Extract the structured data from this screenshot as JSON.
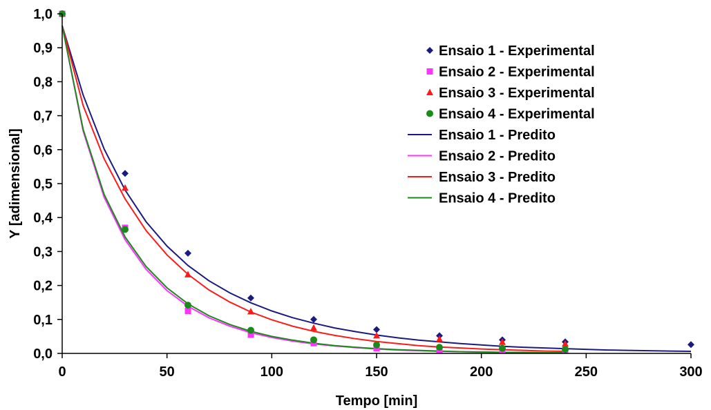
{
  "chart_data": {
    "type": "scatter",
    "title": "",
    "xlabel": "Tempo [min]",
    "ylabel": "Y [adimensional]",
    "xlim": [
      0,
      300
    ],
    "ylim": [
      0,
      1.0
    ],
    "xticks": [
      "0",
      "50",
      "100",
      "150",
      "200",
      "250",
      "300"
    ],
    "yticks": [
      "0,0",
      "0,1",
      "0,2",
      "0,3",
      "0,4",
      "0,5",
      "0,6",
      "0,7",
      "0,8",
      "0,9",
      "1,0"
    ],
    "grid": false,
    "legend_position": "top-right",
    "series": [
      {
        "name": "Ensaio 1 - Experimental",
        "kind": "scatter",
        "marker": "diamond",
        "color": "#1a1a80",
        "x": [
          0,
          30,
          60,
          90,
          120,
          150,
          180,
          210,
          240,
          300
        ],
        "y": [
          1.0,
          0.53,
          0.295,
          0.163,
          0.1,
          0.07,
          0.052,
          0.04,
          0.034,
          0.026
        ]
      },
      {
        "name": "Ensaio 2 - Experimental",
        "kind": "scatter",
        "marker": "square",
        "color": "#ff33ff",
        "x": [
          0,
          30,
          60,
          90,
          120,
          150,
          180,
          210,
          240
        ],
        "y": [
          1.0,
          0.37,
          0.125,
          0.055,
          0.03,
          0.015,
          0.01,
          0.01,
          0.008
        ]
      },
      {
        "name": "Ensaio 3 - Experimental",
        "kind": "scatter",
        "marker": "triangle",
        "color": "#ff1a1a",
        "x": [
          0,
          30,
          60,
          90,
          120,
          150,
          180,
          210,
          240
        ],
        "y": [
          1.0,
          0.487,
          0.232,
          0.123,
          0.075,
          0.052,
          0.042,
          0.033,
          0.028
        ]
      },
      {
        "name": "Ensaio 4 - Experimental",
        "kind": "scatter",
        "marker": "circle",
        "color": "#1a8a1a",
        "x": [
          0,
          30,
          60,
          90,
          120,
          150,
          180,
          210,
          240
        ],
        "y": [
          1.0,
          0.365,
          0.142,
          0.068,
          0.04,
          0.025,
          0.018,
          0.015,
          0.012
        ]
      },
      {
        "name": "Ensaio 1 - Predito",
        "kind": "line",
        "color": "#1a1a80",
        "x": [
          0,
          10,
          20,
          30,
          40,
          50,
          60,
          70,
          80,
          90,
          100,
          110,
          120,
          130,
          140,
          150,
          160,
          170,
          180,
          190,
          200,
          210,
          220,
          230,
          240,
          250,
          260,
          270,
          280,
          290,
          300
        ],
        "y": [
          0.965,
          0.761,
          0.602,
          0.481,
          0.388,
          0.316,
          0.259,
          0.214,
          0.178,
          0.149,
          0.125,
          0.105,
          0.089,
          0.075,
          0.064,
          0.054,
          0.046,
          0.039,
          0.034,
          0.029,
          0.025,
          0.021,
          0.018,
          0.016,
          0.014,
          0.012,
          0.01,
          0.009,
          0.008,
          0.007,
          0.006
        ]
      },
      {
        "name": "Ensaio 2 - Predito",
        "kind": "line",
        "color": "#ff33ff",
        "x": [
          0,
          10,
          20,
          30,
          40,
          50,
          60,
          70,
          80,
          90,
          100,
          110,
          120,
          130,
          140,
          150,
          160,
          170,
          180,
          190,
          200,
          210,
          220,
          230,
          240
        ],
        "y": [
          0.965,
          0.655,
          0.46,
          0.335,
          0.248,
          0.185,
          0.139,
          0.105,
          0.08,
          0.061,
          0.047,
          0.036,
          0.028,
          0.022,
          0.017,
          0.013,
          0.01,
          0.008,
          0.006,
          0.005,
          0.004,
          0.003,
          0.003,
          0.002,
          0.002
        ]
      },
      {
        "name": "Ensaio 3 - Predito",
        "kind": "line",
        "color": "#ff1a1a",
        "x": [
          0,
          10,
          20,
          30,
          40,
          50,
          60,
          70,
          80,
          90,
          100,
          110,
          120,
          130,
          140,
          150,
          160,
          170,
          180,
          190,
          200,
          210,
          220,
          230,
          240
        ],
        "y": [
          0.965,
          0.73,
          0.573,
          0.455,
          0.362,
          0.29,
          0.233,
          0.187,
          0.151,
          0.122,
          0.099,
          0.08,
          0.065,
          0.053,
          0.043,
          0.035,
          0.029,
          0.023,
          0.019,
          0.016,
          0.013,
          0.011,
          0.009,
          0.007,
          0.006
        ]
      },
      {
        "name": "Ensaio 4 - Predito",
        "kind": "line",
        "color": "#1a8a1a",
        "x": [
          0,
          10,
          20,
          30,
          40,
          50,
          60,
          70,
          80,
          90,
          100,
          110,
          120,
          130,
          140,
          150,
          160,
          170,
          180,
          190,
          200,
          210,
          220,
          230,
          240
        ],
        "y": [
          0.965,
          0.66,
          0.468,
          0.343,
          0.256,
          0.193,
          0.146,
          0.111,
          0.085,
          0.065,
          0.05,
          0.039,
          0.03,
          0.023,
          0.018,
          0.014,
          0.011,
          0.009,
          0.007,
          0.005,
          0.004,
          0.003,
          0.003,
          0.002,
          0.002
        ]
      }
    ]
  }
}
